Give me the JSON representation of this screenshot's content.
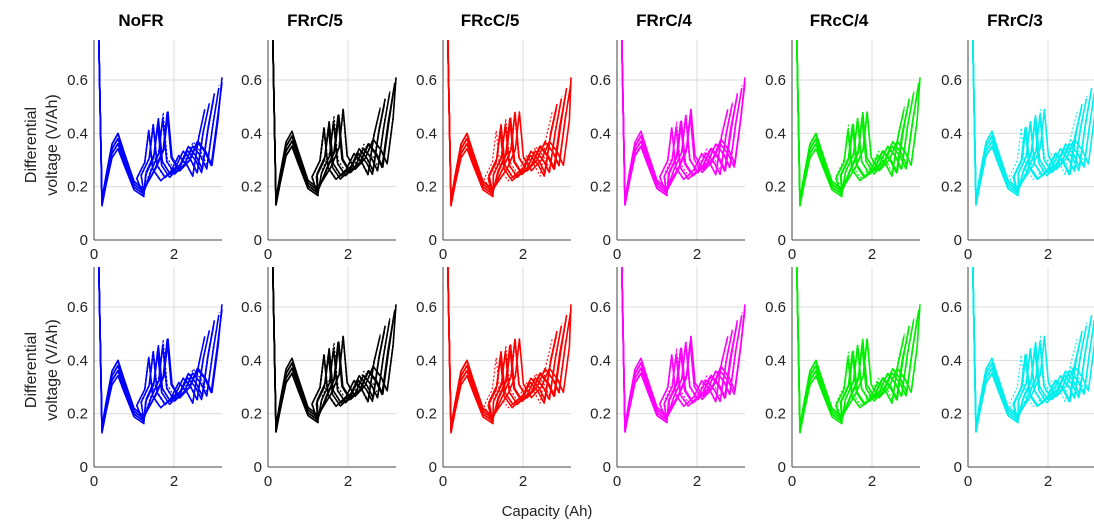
{
  "figure": {
    "ylabel_line1": "Differential",
    "ylabel_line2": "voltage (V/Ah)",
    "xlabel": "Capacity (Ah)"
  },
  "chart_data": {
    "type": "line",
    "layout": "small multiples, 2 rows x 6 columns",
    "panel_titles": [
      "NoFR",
      "FRrC/5",
      "FRcC/5",
      "FRrC/4",
      "FRcC/4",
      "FRrC/3"
    ],
    "series_colors": {
      "NoFR": "#0000ff",
      "FRrC/5": "#000000",
      "FRcC/5": "#ff0000",
      "FRrC/4": "#ff00ff",
      "FRcC/4": "#00ee00",
      "FRrC/3": "#00eeee"
    },
    "xlabel": "Capacity (Ah)",
    "ylabel": "Differential voltage (V/Ah)",
    "xlim": [
      0,
      3.2
    ],
    "ylim": [
      0,
      0.75
    ],
    "xticks": [
      "0",
      "2"
    ],
    "yticks": [
      "0",
      "0.2",
      "0.4",
      "0.6"
    ],
    "grid": true,
    "line_styles": [
      "solid",
      "dotted"
    ],
    "rows": [
      {
        "row": "top",
        "typical_curve": {
          "x": [
            0.12,
            0.2,
            0.3,
            0.45,
            0.6,
            0.75,
            1.0,
            1.25,
            1.55,
            1.75,
            1.85,
            1.95,
            2.15,
            2.4,
            2.6,
            2.8,
            2.95,
            3.1,
            3.25
          ],
          "y": [
            0.7,
            0.15,
            0.24,
            0.36,
            0.4,
            0.33,
            0.22,
            0.19,
            0.27,
            0.34,
            0.48,
            0.31,
            0.26,
            0.3,
            0.37,
            0.33,
            0.28,
            0.45,
            0.61
          ]
        }
      },
      {
        "row": "bottom",
        "typical_curve": {
          "x": [
            0.12,
            0.2,
            0.3,
            0.45,
            0.6,
            0.75,
            1.0,
            1.25,
            1.55,
            1.75,
            1.85,
            1.95,
            2.15,
            2.4,
            2.6,
            2.8,
            2.95,
            3.1,
            3.25
          ],
          "y": [
            0.7,
            0.15,
            0.24,
            0.36,
            0.4,
            0.33,
            0.22,
            0.19,
            0.27,
            0.34,
            0.48,
            0.31,
            0.26,
            0.3,
            0.37,
            0.33,
            0.28,
            0.45,
            0.61
          ]
        }
      }
    ]
  }
}
